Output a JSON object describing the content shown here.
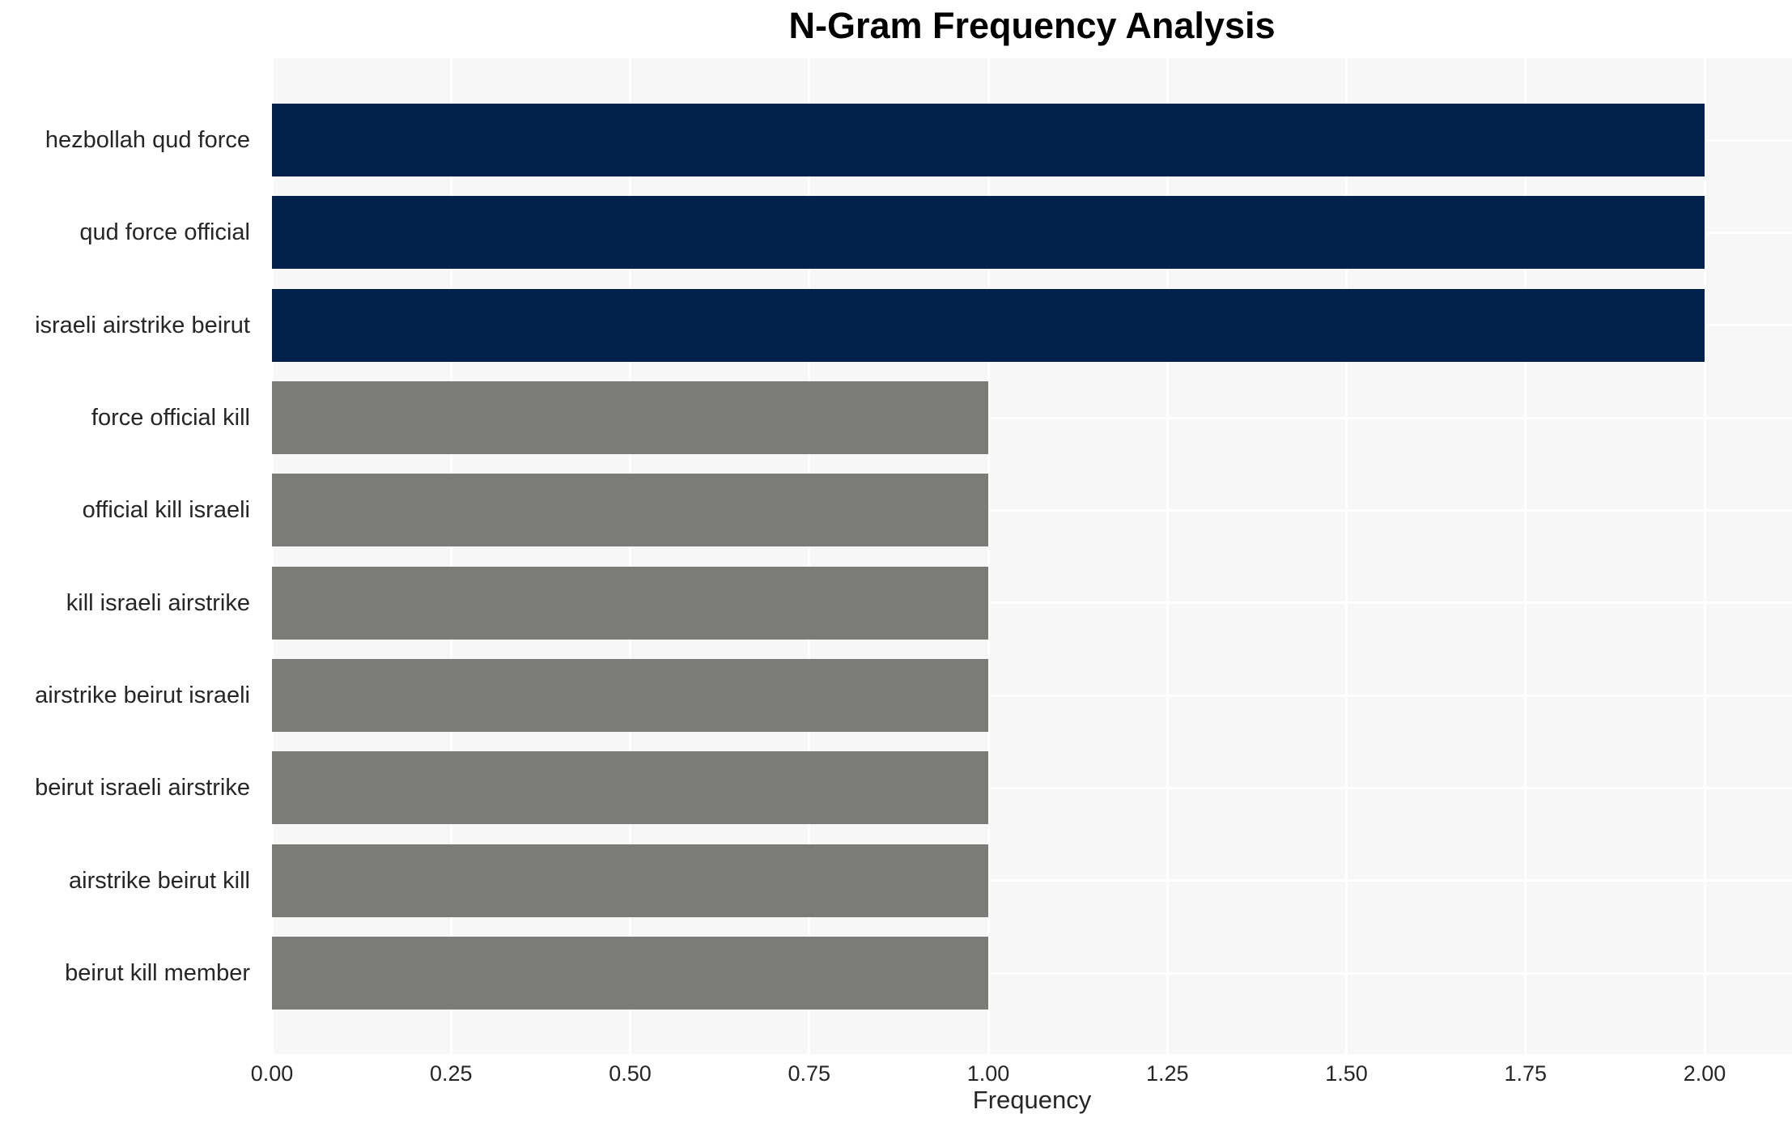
{
  "chart_data": {
    "type": "bar",
    "orientation": "horizontal",
    "title": "N-Gram Frequency Analysis",
    "xlabel": "Frequency",
    "ylabel": "",
    "categories": [
      "hezbollah qud force",
      "qud force official",
      "israeli airstrike beirut",
      "force official kill",
      "official kill israeli",
      "kill israeli airstrike",
      "airstrike beirut israeli",
      "beirut israeli airstrike",
      "airstrike beirut kill",
      "beirut kill member"
    ],
    "values": [
      2,
      2,
      2,
      1,
      1,
      1,
      1,
      1,
      1,
      1
    ],
    "bar_colors": [
      "#02224b",
      "#02224b",
      "#02224b",
      "#7b7b78",
      "#7b7b78",
      "#7b7b78",
      "#7b7b78",
      "#7b7b78",
      "#7b7b78",
      "#7b7b78"
    ],
    "xtick_labels": [
      "0.00",
      "0.25",
      "0.50",
      "0.75",
      "1.00",
      "1.25",
      "1.50",
      "1.75",
      "2.00"
    ],
    "xtick_values": [
      0,
      0.25,
      0.5,
      0.75,
      1,
      1.25,
      1.5,
      1.75,
      2
    ],
    "xlim": [
      0,
      2.12
    ],
    "grid": "on",
    "legend": "none",
    "colors": {
      "plot_background": "#f7f7f7",
      "gridline": "#ffffff",
      "high_bar": "#02224b",
      "low_bar": "#7b7b78",
      "tick_text": "#262626",
      "title_text": "#000000"
    }
  }
}
